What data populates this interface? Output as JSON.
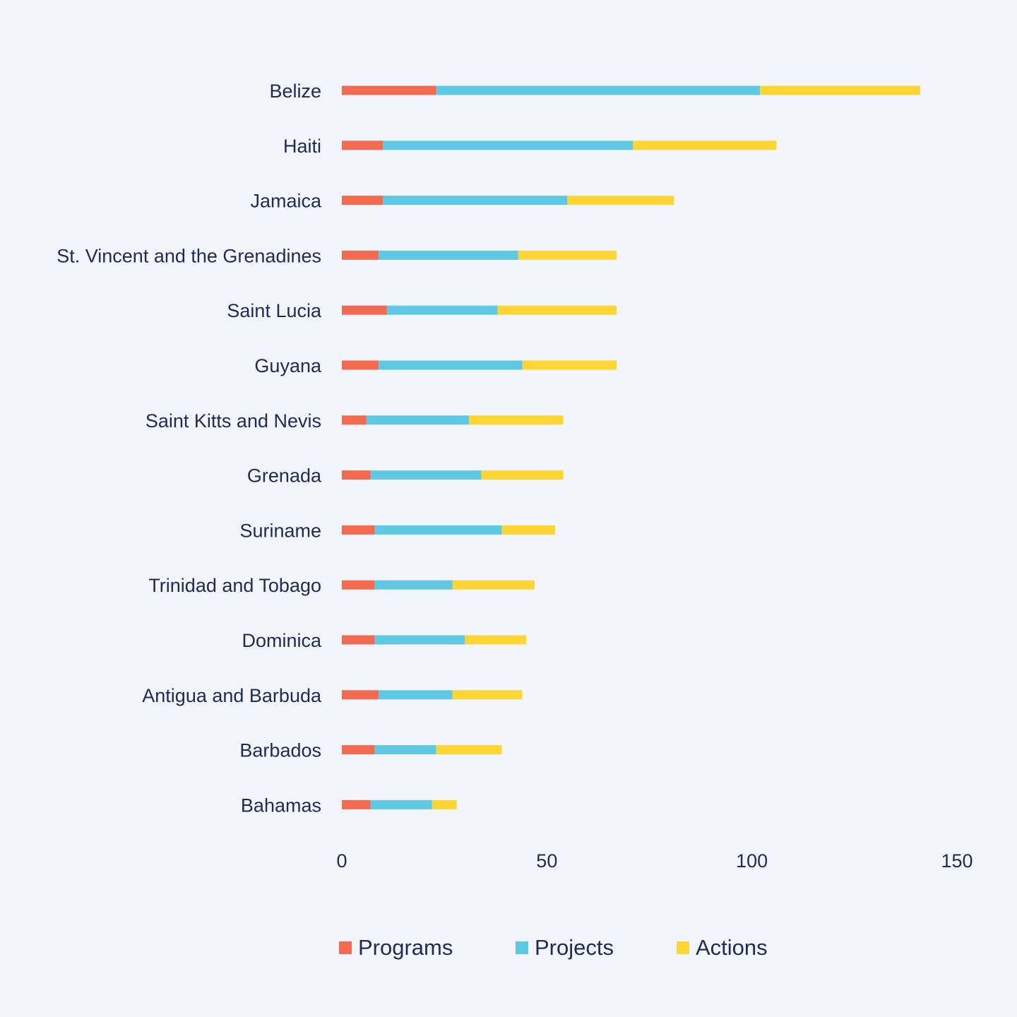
{
  "chart_data": {
    "type": "bar",
    "orientation": "horizontal",
    "stacked": true,
    "categories": [
      "Belize",
      "Haiti",
      "Jamaica",
      "St. Vincent and the Grenadines",
      "Saint Lucia",
      "Guyana",
      "Saint Kitts and Nevis",
      "Grenada",
      "Suriname",
      "Trinidad and Tobago",
      "Dominica",
      "Antigua and Barbuda",
      "Barbados",
      "Bahamas"
    ],
    "series": [
      {
        "name": "Programs",
        "color": "#f26b50",
        "values": [
          23,
          10,
          10,
          9,
          11,
          9,
          6,
          7,
          8,
          8,
          8,
          9,
          8,
          7
        ]
      },
      {
        "name": "Projects",
        "color": "#5fc8e2",
        "values": [
          79,
          61,
          45,
          34,
          27,
          35,
          25,
          27,
          31,
          19,
          22,
          18,
          15,
          15
        ]
      },
      {
        "name": "Actions",
        "color": "#fdd535",
        "values": [
          39,
          35,
          26,
          24,
          29,
          23,
          23,
          20,
          13,
          20,
          15,
          17,
          16,
          6
        ]
      }
    ],
    "xticks": [
      "0",
      "50",
      "100",
      "150"
    ],
    "xlim": [
      0,
      150
    ],
    "grid": false,
    "legend": "bottom"
  }
}
